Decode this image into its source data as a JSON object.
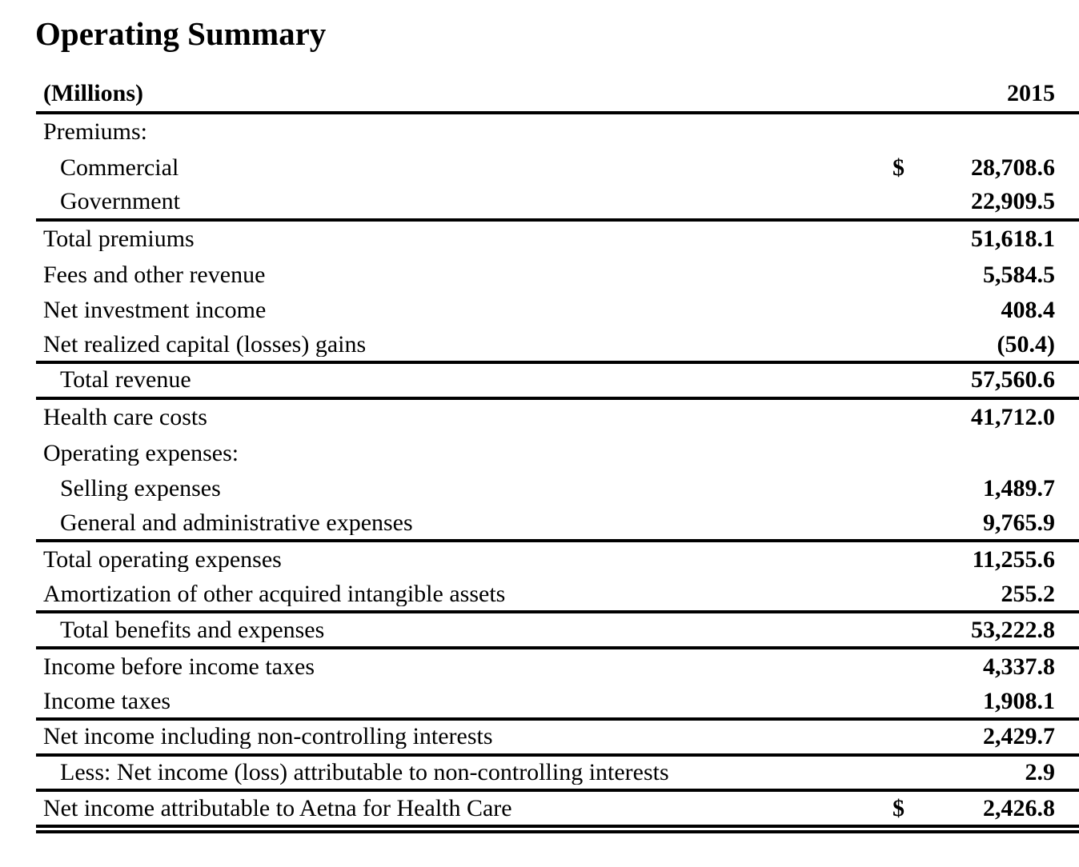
{
  "title": "Operating Summary",
  "table": {
    "header": {
      "label": "(Millions)",
      "year": "2015"
    },
    "rows": [
      {
        "label": "Premiums:",
        "indent": 0,
        "dollar": "",
        "value": "",
        "rule": "none"
      },
      {
        "label": "Commercial",
        "indent": 1,
        "dollar": "$",
        "value": "28,708.6",
        "rule": "none"
      },
      {
        "label": "Government",
        "indent": 1,
        "dollar": "",
        "value": "22,909.5",
        "rule": "single"
      },
      {
        "label": "Total premiums",
        "indent": 0,
        "dollar": "",
        "value": "51,618.1",
        "rule": "none"
      },
      {
        "label": "Fees and other revenue",
        "indent": 0,
        "dollar": "",
        "value": "5,584.5",
        "rule": "none"
      },
      {
        "label": "Net investment income",
        "indent": 0,
        "dollar": "",
        "value": "408.4",
        "rule": "none"
      },
      {
        "label": "Net realized capital (losses) gains",
        "indent": 0,
        "dollar": "",
        "value": "(50.4)",
        "rule": "single"
      },
      {
        "label": "Total revenue",
        "indent": 1,
        "dollar": "",
        "value": "57,560.6",
        "rule": "single"
      },
      {
        "label": "Health care costs",
        "indent": 0,
        "dollar": "",
        "value": "41,712.0",
        "rule": "none"
      },
      {
        "label": "Operating expenses:",
        "indent": 0,
        "dollar": "",
        "value": "",
        "rule": "none"
      },
      {
        "label": "Selling expenses",
        "indent": 1,
        "dollar": "",
        "value": "1,489.7",
        "rule": "none"
      },
      {
        "label": "General and administrative expenses",
        "indent": 1,
        "dollar": "",
        "value": "9,765.9",
        "rule": "single"
      },
      {
        "label": "Total operating expenses",
        "indent": 0,
        "dollar": "",
        "value": "11,255.6",
        "rule": "none"
      },
      {
        "label": "Amortization of other acquired intangible assets",
        "indent": 0,
        "dollar": "",
        "value": "255.2",
        "rule": "single"
      },
      {
        "label": "Total benefits and expenses",
        "indent": 1,
        "dollar": "",
        "value": "53,222.8",
        "rule": "single"
      },
      {
        "label": "Income before income taxes",
        "indent": 0,
        "dollar": "",
        "value": "4,337.8",
        "rule": "none"
      },
      {
        "label": "Income taxes",
        "indent": 0,
        "dollar": "",
        "value": "1,908.1",
        "rule": "single"
      },
      {
        "label": "Net income including non-controlling interests",
        "indent": 0,
        "dollar": "",
        "value": "2,429.7",
        "rule": "single"
      },
      {
        "label": "Less: Net income (loss) attributable to non-controlling interests",
        "indent": 1,
        "dollar": "",
        "value": "2.9",
        "rule": "single"
      },
      {
        "label": "Net income attributable to Aetna for Health Care",
        "indent": 0,
        "dollar": "$",
        "value": "2,426.8",
        "rule": "double"
      }
    ]
  }
}
